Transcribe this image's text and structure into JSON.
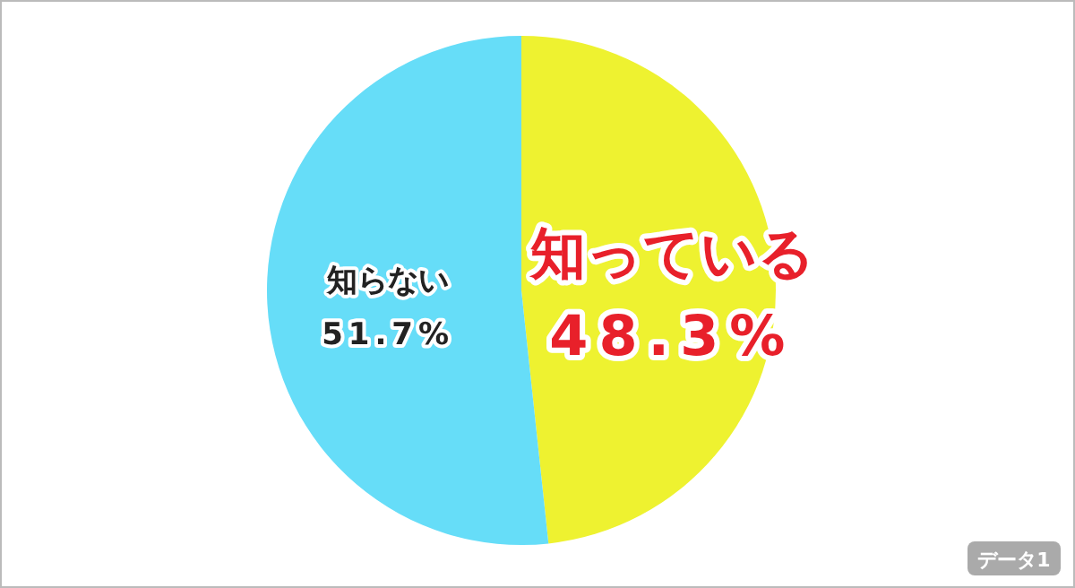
{
  "chart_data": {
    "type": "pie",
    "categories": [
      "知っている",
      "知らない"
    ],
    "values": [
      48.3,
      51.7
    ],
    "colors": [
      "#eef230",
      "#66ddf8"
    ],
    "value_labels": [
      "48.3%",
      "51.7%"
    ],
    "annotations": [
      "データ1"
    ]
  }
}
